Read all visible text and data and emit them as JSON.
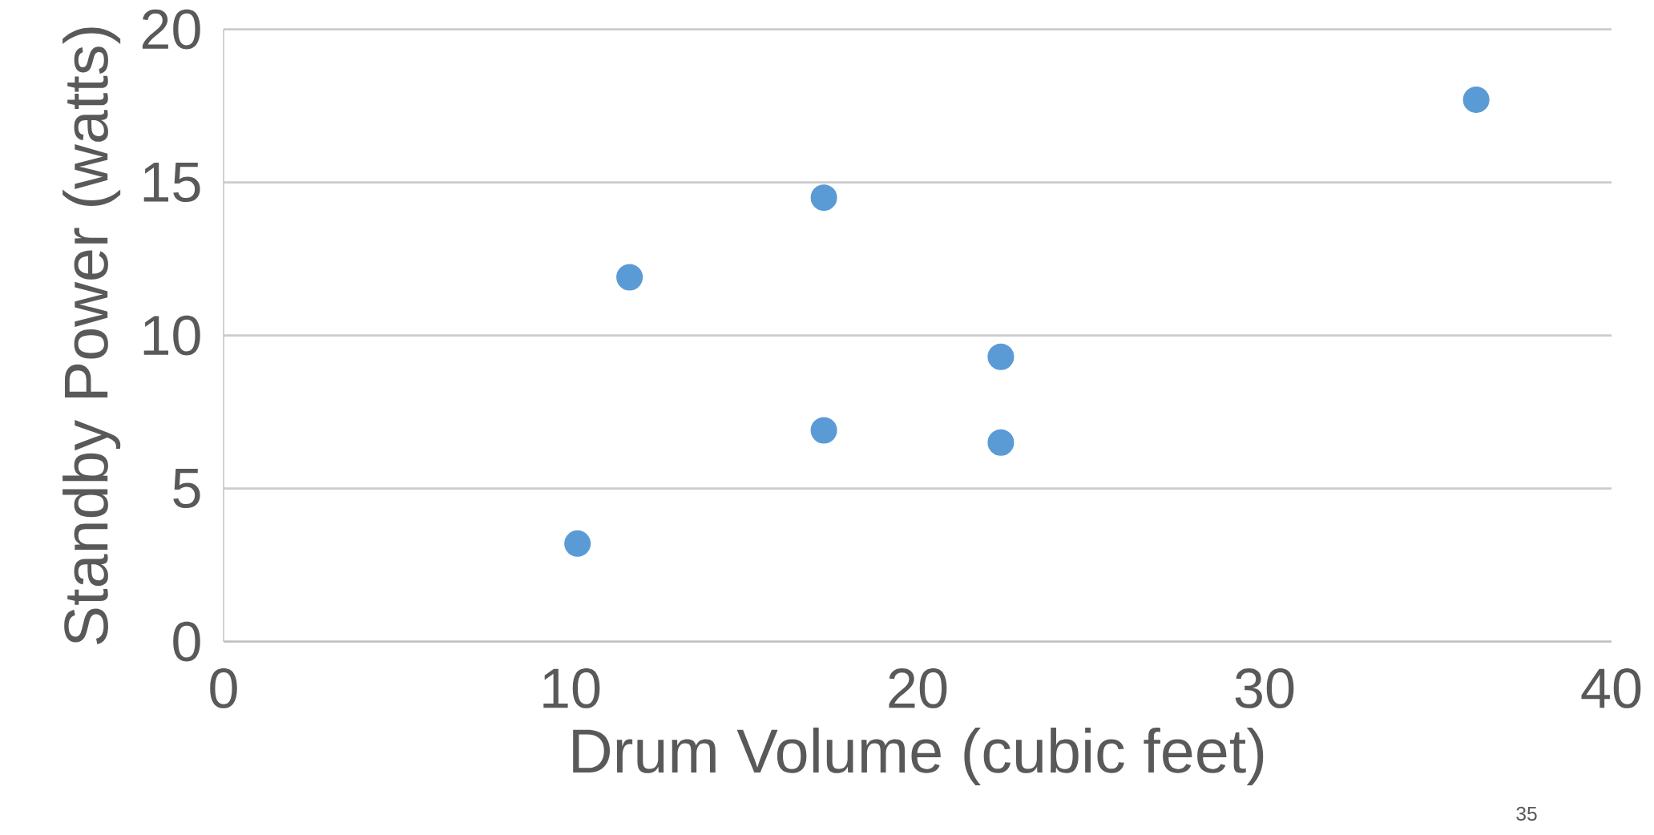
{
  "chart_data": {
    "type": "scatter",
    "xlabel": "Drum Volume (cubic feet)",
    "ylabel": "Standby Power (watts)",
    "x": [
      10.2,
      11.7,
      17.3,
      17.3,
      22.4,
      22.4,
      36.1
    ],
    "values": [
      3.2,
      11.9,
      14.5,
      6.9,
      9.3,
      6.5,
      17.7
    ],
    "color": "#5b9bd5",
    "marker": "circle",
    "grid": "y",
    "xlim": [
      0,
      40
    ],
    "ylim": [
      0,
      20
    ],
    "xticks": [
      0,
      10,
      20,
      30,
      40
    ],
    "yticks": [
      0,
      5,
      10,
      15,
      20
    ],
    "annotations": [
      "35"
    ]
  }
}
